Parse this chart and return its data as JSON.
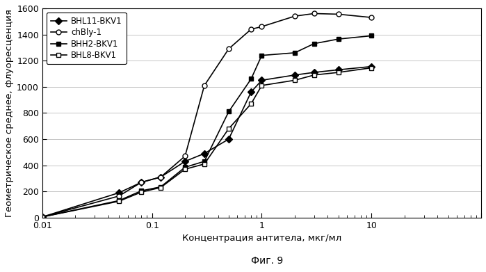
{
  "xlabel": "Концентрация антитела, мкг/мл",
  "ylabel": "Геометрическое среднее, флуоресценция",
  "caption": "Фиг. 9",
  "xlim": [
    0.01,
    100
  ],
  "ylim": [
    0,
    1600
  ],
  "yticks": [
    0,
    200,
    400,
    600,
    800,
    1000,
    1200,
    1400,
    1600
  ],
  "series": [
    {
      "label": "BHL11-BKV1",
      "marker": "D",
      "marker_filled": true,
      "x": [
        0.01,
        0.05,
        0.08,
        0.12,
        0.2,
        0.3,
        0.5,
        0.8,
        1.0,
        2.0,
        3.0,
        5.0,
        10.0
      ],
      "y": [
        5,
        190,
        270,
        310,
        430,
        490,
        600,
        960,
        1050,
        1090,
        1110,
        1130,
        1155
      ]
    },
    {
      "label": "chBly-1",
      "marker": "o",
      "marker_filled": false,
      "x": [
        0.01,
        0.05,
        0.08,
        0.12,
        0.2,
        0.3,
        0.5,
        0.8,
        1.0,
        2.0,
        3.0,
        5.0,
        10.0
      ],
      "y": [
        5,
        165,
        270,
        310,
        470,
        1010,
        1290,
        1440,
        1460,
        1540,
        1560,
        1555,
        1530
      ]
    },
    {
      "label": "BHH2-BKV1",
      "marker": "s",
      "marker_filled": true,
      "x": [
        0.01,
        0.05,
        0.08,
        0.12,
        0.2,
        0.3,
        0.5,
        0.8,
        1.0,
        2.0,
        3.0,
        5.0,
        10.0
      ],
      "y": [
        5,
        130,
        205,
        235,
        385,
        430,
        810,
        1060,
        1240,
        1260,
        1330,
        1365,
        1390
      ]
    },
    {
      "label": "BHL8-BKV1",
      "marker": "s",
      "marker_filled": false,
      "x": [
        0.01,
        0.05,
        0.08,
        0.12,
        0.2,
        0.3,
        0.5,
        0.8,
        1.0,
        2.0,
        3.0,
        5.0,
        10.0
      ],
      "y": [
        5,
        125,
        195,
        230,
        370,
        410,
        680,
        870,
        1010,
        1050,
        1090,
        1110,
        1145
      ]
    }
  ],
  "background_color": "#ffffff",
  "grid_color": "#bbbbbb",
  "legend_fontsize": 8.5,
  "axis_fontsize": 9.5,
  "tick_fontsize": 9,
  "caption_fontsize": 10,
  "markersize": 5,
  "linewidth": 1.2
}
